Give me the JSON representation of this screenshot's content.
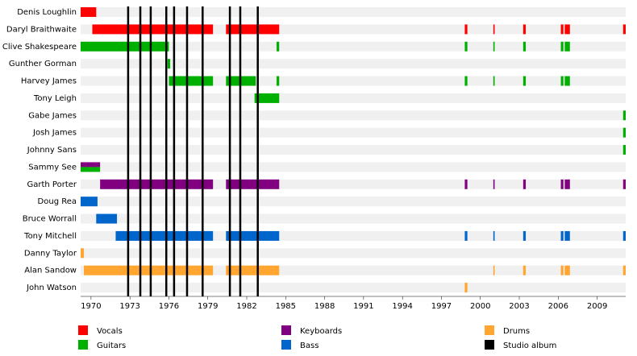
{
  "chart_data": {
    "type": "timeline",
    "xlim": [
      1969.2,
      2011.2
    ],
    "xticks": [
      1970,
      1973,
      1976,
      1979,
      1982,
      1985,
      1988,
      1991,
      1994,
      1997,
      2000,
      2003,
      2006,
      2009
    ],
    "series": [
      {
        "name": "Vocals",
        "color": "#ff0000"
      },
      {
        "name": "Guitars",
        "color": "#00b000"
      },
      {
        "name": "Keyboards",
        "color": "#800080"
      },
      {
        "name": "Bass",
        "color": "#0066cc"
      },
      {
        "name": "Drums",
        "color": "#ffa530"
      }
    ],
    "album_label": "Studio album",
    "album_color": "#000000",
    "albums": [
      1972.86,
      1973.8,
      1974.6,
      1975.8,
      1976.4,
      1977.4,
      1978.6,
      1980.7,
      1981.5,
      1982.85
    ],
    "rows": [
      {
        "name": "Denis Loughlin",
        "spans": [
          {
            "role": "Vocals",
            "start": 1969.2,
            "end": 1970.4
          }
        ]
      },
      {
        "name": "Daryl Braithwaite",
        "spans": [
          {
            "role": "Vocals",
            "start": 1970.1,
            "end": 1979.4
          },
          {
            "role": "Vocals",
            "start": 1980.4,
            "end": 1984.5
          },
          {
            "role": "Vocals",
            "start": 1998.8,
            "end": 1999.0
          },
          {
            "role": "Vocals",
            "start": 2001.0,
            "end": 2001.1
          },
          {
            "role": "Vocals",
            "start": 2003.3,
            "end": 2003.5
          },
          {
            "role": "Vocals",
            "start": 2006.2,
            "end": 2006.4
          },
          {
            "role": "Vocals",
            "start": 2006.5,
            "end": 2006.9
          },
          {
            "role": "Vocals",
            "start": 2011.0,
            "end": 2011.2
          }
        ]
      },
      {
        "name": "Clive Shakespeare",
        "spans": [
          {
            "role": "Guitars",
            "start": 1969.2,
            "end": 1976.0
          },
          {
            "role": "Guitars",
            "start": 1984.3,
            "end": 1984.5
          },
          {
            "role": "Guitars",
            "start": 1998.8,
            "end": 1999.0
          },
          {
            "role": "Guitars",
            "start": 2001.0,
            "end": 2001.1
          },
          {
            "role": "Guitars",
            "start": 2003.3,
            "end": 2003.5
          },
          {
            "role": "Guitars",
            "start": 2006.2,
            "end": 2006.4
          },
          {
            "role": "Guitars",
            "start": 2006.5,
            "end": 2006.9
          }
        ]
      },
      {
        "name": "Gunther Gorman",
        "spans": [
          {
            "role": "Guitars",
            "start": 1975.9,
            "end": 1976.1
          }
        ]
      },
      {
        "name": "Harvey James",
        "spans": [
          {
            "role": "Guitars",
            "start": 1976.0,
            "end": 1979.4
          },
          {
            "role": "Guitars",
            "start": 1980.4,
            "end": 1982.7
          },
          {
            "role": "Guitars",
            "start": 1984.3,
            "end": 1984.5
          },
          {
            "role": "Guitars",
            "start": 1998.8,
            "end": 1999.0
          },
          {
            "role": "Guitars",
            "start": 2001.0,
            "end": 2001.1
          },
          {
            "role": "Guitars",
            "start": 2003.3,
            "end": 2003.5
          },
          {
            "role": "Guitars",
            "start": 2006.2,
            "end": 2006.4
          },
          {
            "role": "Guitars",
            "start": 2006.5,
            "end": 2006.9
          }
        ]
      },
      {
        "name": "Tony Leigh",
        "spans": [
          {
            "role": "Guitars",
            "start": 1982.6,
            "end": 1984.5
          }
        ]
      },
      {
        "name": "Gabe James",
        "spans": [
          {
            "role": "Guitars",
            "start": 2011.0,
            "end": 2011.2
          }
        ]
      },
      {
        "name": "Josh James",
        "spans": [
          {
            "role": "Guitars",
            "start": 2011.0,
            "end": 2011.2
          }
        ]
      },
      {
        "name": "Johnny Sans",
        "spans": [
          {
            "role": "Guitars",
            "start": 2011.0,
            "end": 2011.2
          }
        ]
      },
      {
        "name": "Sammy See",
        "spans": [
          {
            "role": "Keyboards",
            "start": 1969.2,
            "end": 1970.7
          },
          {
            "role": "Guitars",
            "start": 1969.2,
            "end": 1970.7
          }
        ]
      },
      {
        "name": "Garth Porter",
        "spans": [
          {
            "role": "Keyboards",
            "start": 1970.7,
            "end": 1979.4
          },
          {
            "role": "Keyboards",
            "start": 1980.4,
            "end": 1984.5
          },
          {
            "role": "Keyboards",
            "start": 1998.8,
            "end": 1999.0
          },
          {
            "role": "Keyboards",
            "start": 2001.0,
            "end": 2001.1
          },
          {
            "role": "Keyboards",
            "start": 2003.3,
            "end": 2003.5
          },
          {
            "role": "Keyboards",
            "start": 2006.2,
            "end": 2006.4
          },
          {
            "role": "Keyboards",
            "start": 2006.5,
            "end": 2006.9
          },
          {
            "role": "Keyboards",
            "start": 2011.0,
            "end": 2011.2
          }
        ]
      },
      {
        "name": "Doug Rea",
        "spans": [
          {
            "role": "Bass",
            "start": 1969.2,
            "end": 1970.5
          }
        ]
      },
      {
        "name": "Bruce Worrall",
        "spans": [
          {
            "role": "Bass",
            "start": 1970.4,
            "end": 1972.0
          }
        ]
      },
      {
        "name": "Tony Mitchell",
        "spans": [
          {
            "role": "Bass",
            "start": 1971.9,
            "end": 1979.4
          },
          {
            "role": "Bass",
            "start": 1980.4,
            "end": 1984.5
          },
          {
            "role": "Bass",
            "start": 1998.8,
            "end": 1999.0
          },
          {
            "role": "Bass",
            "start": 2001.0,
            "end": 2001.1
          },
          {
            "role": "Bass",
            "start": 2003.3,
            "end": 2003.5
          },
          {
            "role": "Bass",
            "start": 2006.2,
            "end": 2006.4
          },
          {
            "role": "Bass",
            "start": 2006.5,
            "end": 2006.9
          },
          {
            "role": "Bass",
            "start": 2011.0,
            "end": 2011.2
          }
        ]
      },
      {
        "name": "Danny Taylor",
        "spans": [
          {
            "role": "Drums",
            "start": 1969.2,
            "end": 1969.45
          }
        ]
      },
      {
        "name": "Alan Sandow",
        "spans": [
          {
            "role": "Drums",
            "start": 1969.45,
            "end": 1979.4
          },
          {
            "role": "Drums",
            "start": 1980.4,
            "end": 1984.5
          },
          {
            "role": "Drums",
            "start": 2001.0,
            "end": 2001.1
          },
          {
            "role": "Drums",
            "start": 2003.3,
            "end": 2003.5
          },
          {
            "role": "Drums",
            "start": 2006.2,
            "end": 2006.4
          },
          {
            "role": "Drums",
            "start": 2006.5,
            "end": 2006.9
          },
          {
            "role": "Drums",
            "start": 2011.0,
            "end": 2011.2
          }
        ]
      },
      {
        "name": "John Watson",
        "spans": [
          {
            "role": "Drums",
            "start": 1998.8,
            "end": 1999.0
          }
        ]
      }
    ]
  }
}
